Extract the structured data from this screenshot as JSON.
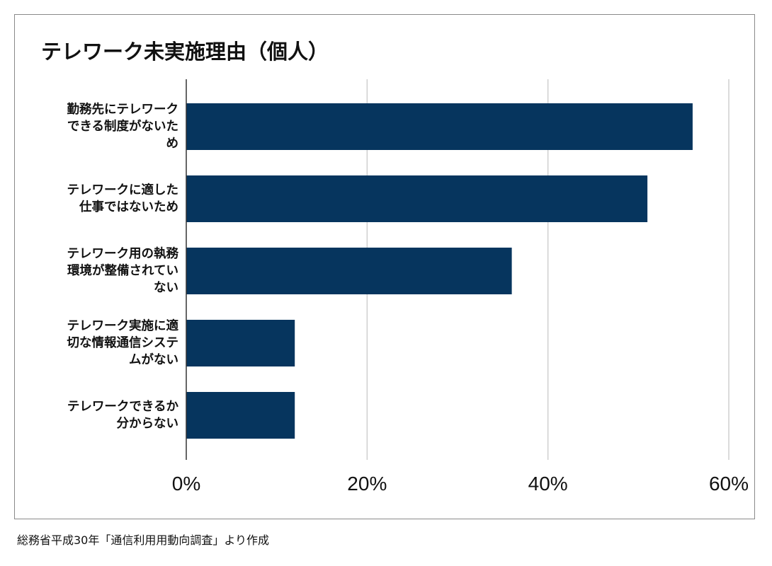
{
  "chart_data": {
    "type": "bar",
    "orientation": "horizontal",
    "title": "テレワーク未実施理由（個人）",
    "categories": [
      [
        "勤務先にテレワーク",
        "できる制度がないた",
        "め"
      ],
      [
        "テレワークに適した",
        "仕事ではないため"
      ],
      [
        "テレワーク用の執務",
        "環境が整備されてい",
        "ない"
      ],
      [
        "テレワーク実施に適",
        "切な情報通信システ",
        "ムがない"
      ],
      [
        "テレワークできるか",
        "分からない"
      ]
    ],
    "values": [
      56,
      51,
      36,
      12,
      12
    ],
    "xlim": [
      0,
      60
    ],
    "xticks": [
      0,
      20,
      40,
      60
    ],
    "tick_suffix": "%",
    "grid": true,
    "bar_color": "#06355e"
  },
  "source_note": "総務省平成30年「通信利用用動向調査」より作成"
}
